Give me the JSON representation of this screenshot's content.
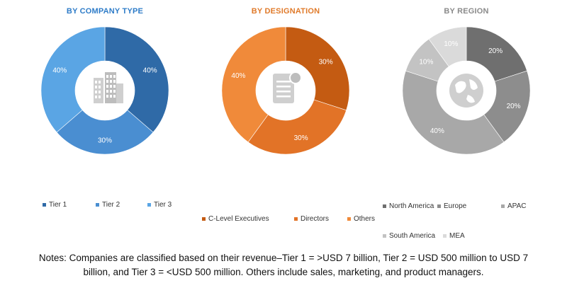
{
  "chart_data": [
    {
      "type": "pie",
      "title": "BY COMPANY TYPE",
      "title_color": "#2e7cc8",
      "categories": [
        "Tier 1",
        "Tier 2",
        "Tier 3"
      ],
      "values": [
        40,
        30,
        40
      ],
      "value_labels": [
        "40%",
        "30%",
        "40%"
      ],
      "colors": [
        "#2f6aa7",
        "#4a8ed1",
        "#5aa5e4"
      ],
      "center_icon": "building-icon"
    },
    {
      "type": "pie",
      "title": "BY DESIGNATION",
      "title_color": "#e07a2a",
      "categories": [
        "C-Level Executives",
        "Directors",
        "Others"
      ],
      "values": [
        30,
        30,
        40
      ],
      "value_labels": [
        "30%",
        "30%",
        "40%"
      ],
      "colors": [
        "#c45b12",
        "#e27327",
        "#f08a3a"
      ],
      "center_icon": "document-person-icon"
    },
    {
      "type": "pie",
      "title": "BY REGION",
      "title_color": "#8a8a8a",
      "categories": [
        "North America",
        "Europe",
        "APAC",
        "South America",
        "MEA"
      ],
      "values": [
        20,
        20,
        40,
        10,
        10
      ],
      "value_labels": [
        "20%",
        "20%",
        "40%",
        "10%",
        "10%"
      ],
      "colors": [
        "#6f6f6f",
        "#8d8d8d",
        "#a8a8a8",
        "#c3c3c3",
        "#dadada"
      ],
      "center_icon": "globe-icon"
    }
  ],
  "notes": {
    "line1": "Notes: Companies are classified based on their revenue–Tier 1 = >USD 7 billion, Tier 2 = USD 500 million to USD 7",
    "line2": "billion, and Tier 3 = <USD 500 million. Others include sales, marketing, and product managers."
  }
}
